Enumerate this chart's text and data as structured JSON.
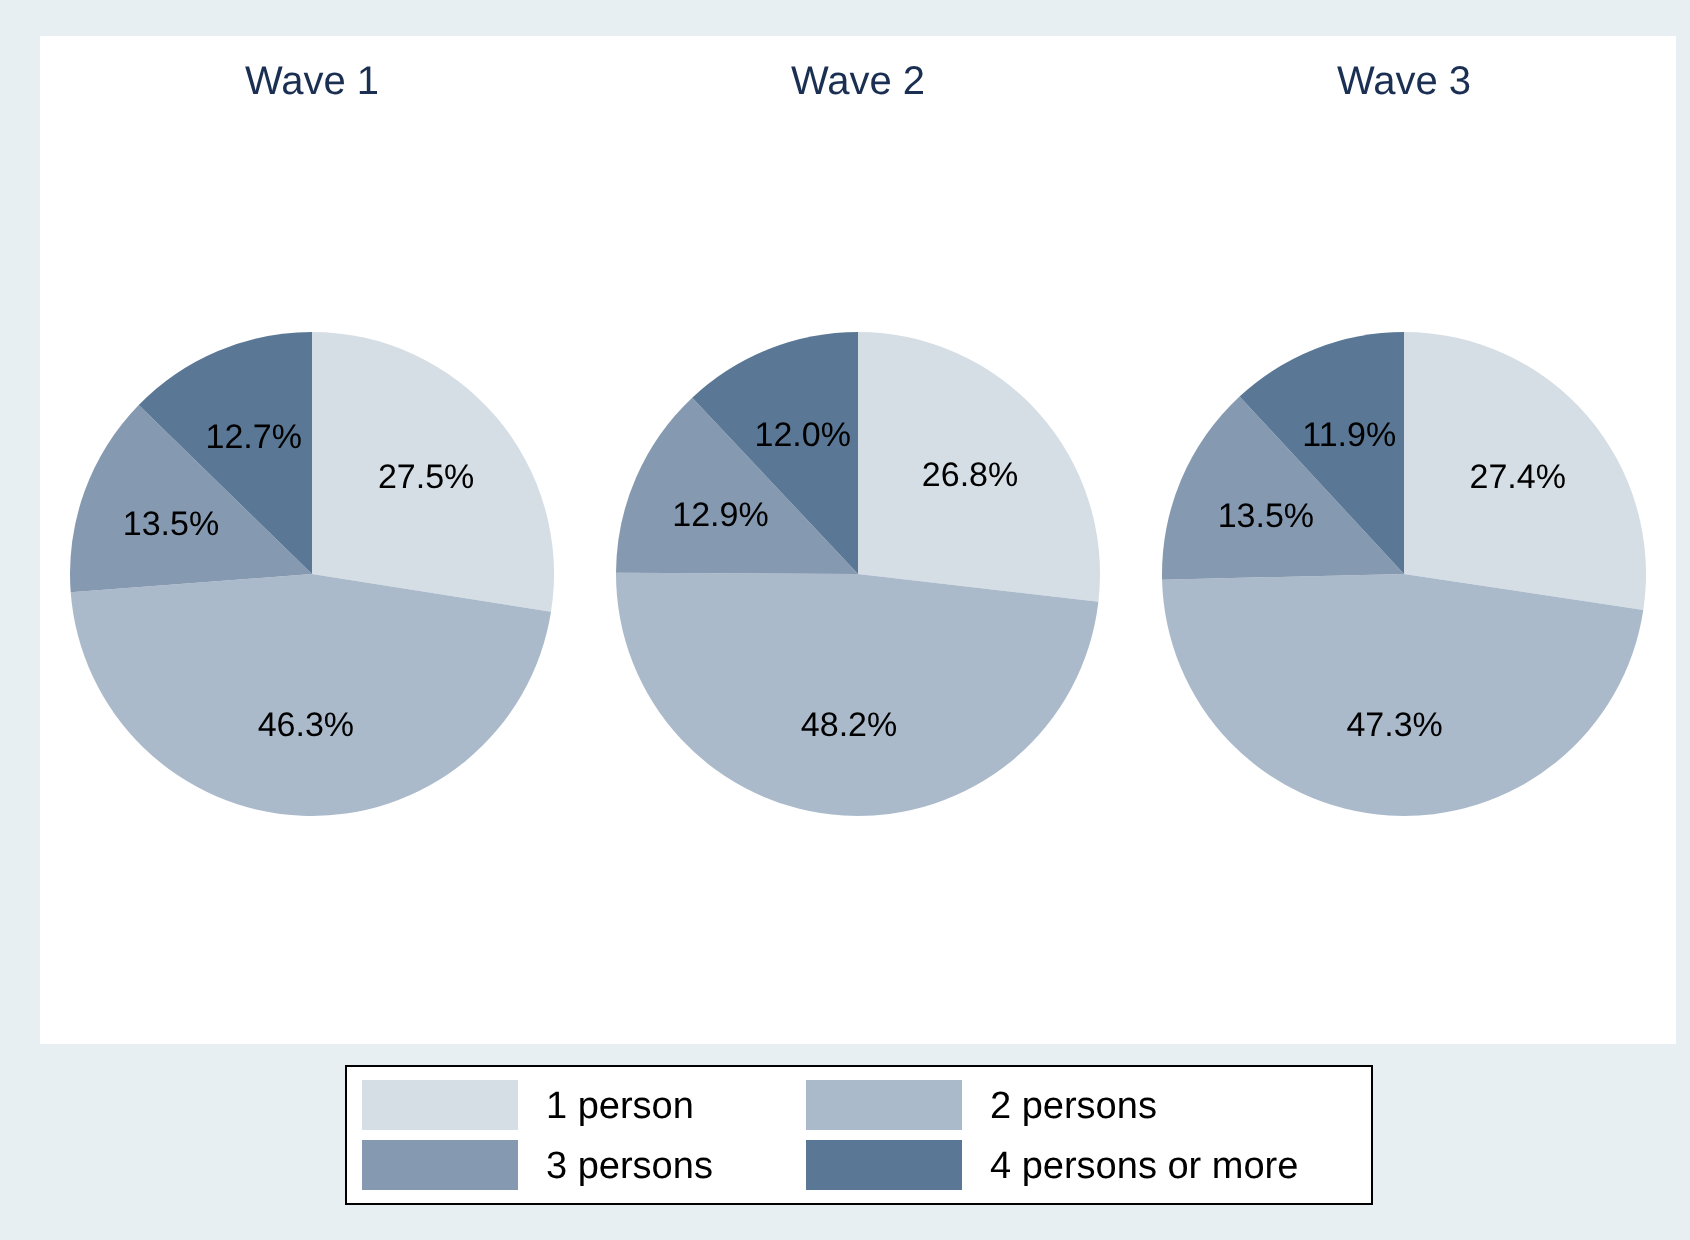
{
  "chart_data": [
    {
      "type": "pie",
      "title": "Wave 1",
      "categories": [
        "1 person",
        "2 persons",
        "3 persons",
        "4 persons or more"
      ],
      "values": [
        27.5,
        46.3,
        13.5,
        12.7
      ],
      "value_labels": [
        "27.5%",
        "46.3%",
        "13.5%",
        "12.7%"
      ],
      "colors": [
        "#d5dde5",
        "#aabacb",
        "#8599b0",
        "#5a7896"
      ],
      "legend": "bottom"
    },
    {
      "type": "pie",
      "title": "Wave 2",
      "categories": [
        null,
        null,
        null,
        null
      ],
      "values": [
        26.8,
        48.2,
        12.9,
        12.0
      ],
      "value_labels": [
        "26.8%",
        "48.2%",
        "12.9%",
        "12.0%"
      ],
      "colors": [
        "#d5dde5",
        "#aabacb",
        "#8599b0",
        "#5a7896"
      ]
    },
    {
      "type": "pie",
      "title": "Wave 3",
      "categories": [
        null,
        null,
        null,
        null
      ],
      "values": [
        27.4,
        47.3,
        13.5,
        11.9
      ],
      "value_labels": [
        "27.4%",
        "47.3%",
        "13.5%",
        "11.9%"
      ],
      "colors": [
        "#d5dde5",
        "#aabacb",
        "#8599b0",
        "#5a7896"
      ]
    }
  ]
}
